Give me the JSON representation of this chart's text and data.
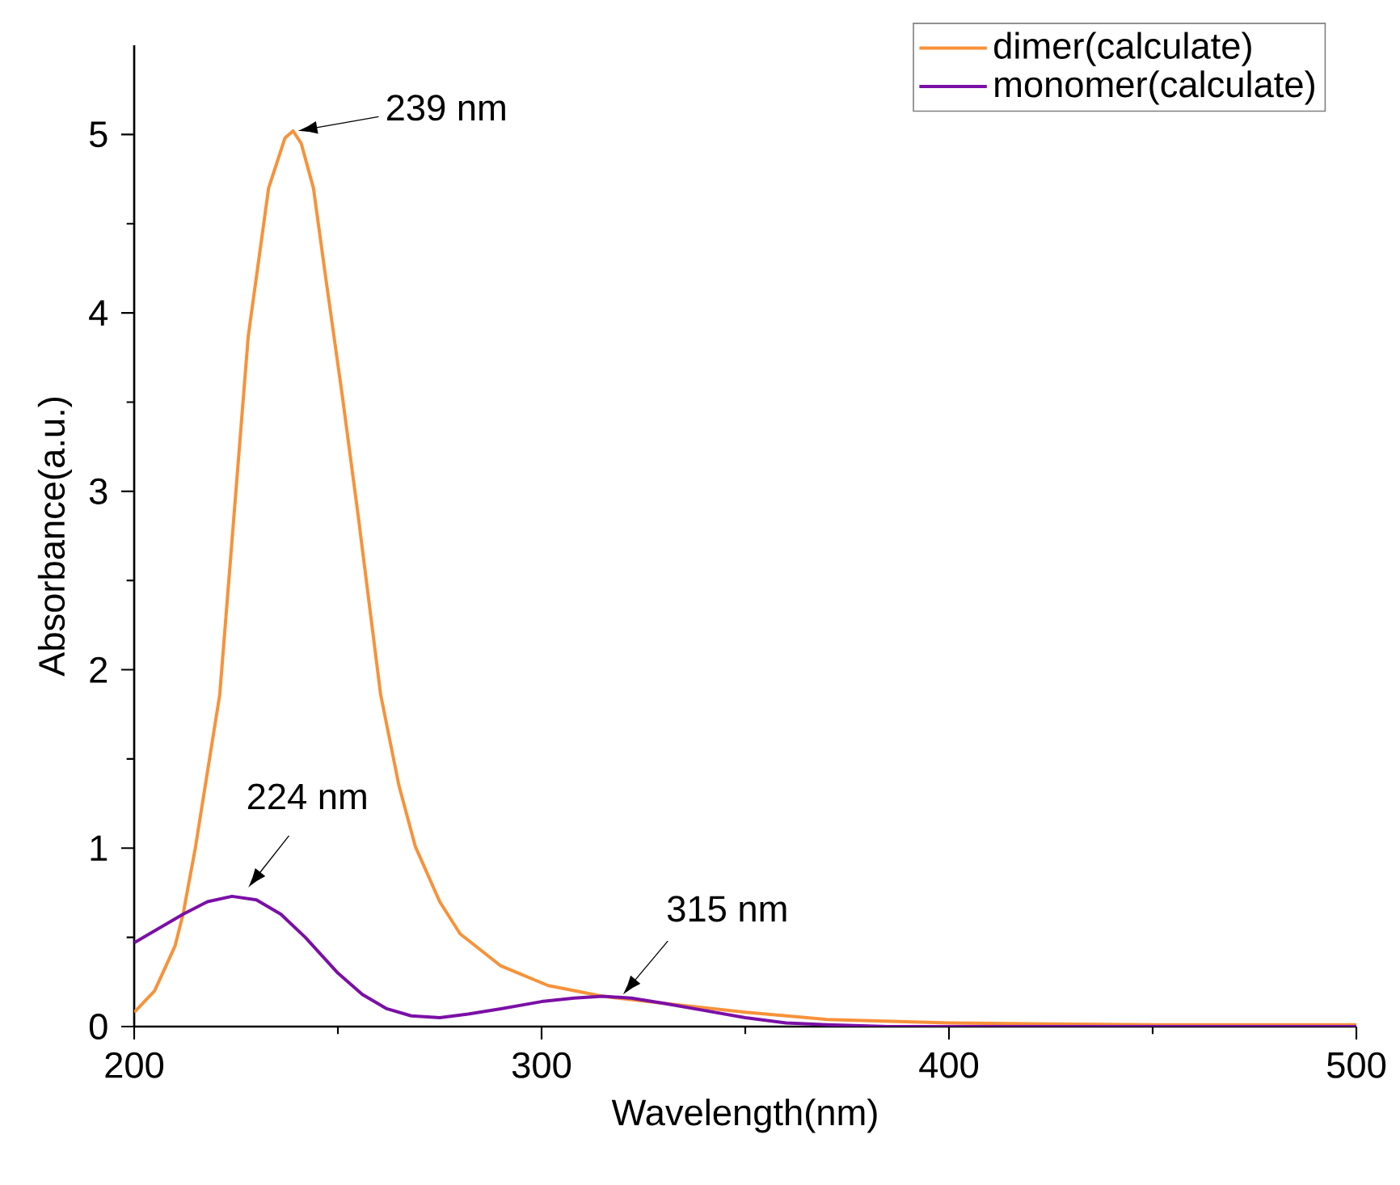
{
  "chart_data": {
    "type": "line",
    "xlabel": "Wavelength(nm)",
    "ylabel": "Absorbance(a.u.)",
    "xlim": [
      200,
      500
    ],
    "xticks": [
      200,
      300,
      400,
      500
    ],
    "ylim": [
      0,
      5.5
    ],
    "yticks": [
      0,
      1,
      2,
      3,
      4,
      5
    ],
    "grid": false,
    "legend": "top right",
    "marker": "none",
    "line_style": "solid",
    "series": [
      {
        "name": "dimer(calculate)",
        "color": "#f7923a",
        "x": [
          200,
          205,
          210,
          212,
          215,
          221,
          228,
          233,
          237,
          239,
          241,
          244,
          247,
          251,
          255,
          260.5,
          265,
          269,
          275,
          280,
          290,
          301.6,
          315,
          330,
          350,
          370,
          400,
          450,
          500
        ],
        "values": [
          0.08,
          0.2,
          0.45,
          0.63,
          1.0,
          1.86,
          3.87,
          4.7,
          4.98,
          5.02,
          4.95,
          4.7,
          4.2,
          3.55,
          2.86,
          1.86,
          1.35,
          1.01,
          0.7,
          0.52,
          0.34,
          0.23,
          0.17,
          0.13,
          0.08,
          0.04,
          0.02,
          0.01,
          0.01
        ]
      },
      {
        "name": "monomer(calculate)",
        "color": "#7b0fa6",
        "x": [
          200,
          206,
          212,
          218,
          224,
          230,
          236,
          242,
          250,
          256,
          262,
          268,
          275,
          282,
          290,
          300,
          308,
          315,
          322,
          330,
          340,
          350,
          360,
          370,
          385,
          400,
          450,
          500
        ],
        "values": [
          0.47,
          0.55,
          0.63,
          0.7,
          0.73,
          0.71,
          0.63,
          0.5,
          0.3,
          0.18,
          0.1,
          0.06,
          0.05,
          0.07,
          0.1,
          0.14,
          0.16,
          0.17,
          0.16,
          0.13,
          0.09,
          0.05,
          0.02,
          0.01,
          0.0,
          0.0,
          0.0,
          0.0
        ]
      }
    ],
    "annotations": [
      {
        "text": "239 nm",
        "x": 239,
        "y": 5.02
      },
      {
        "text": "224 nm",
        "x": 224,
        "y": 0.73
      },
      {
        "text": "315 nm",
        "x": 315,
        "y": 0.17
      }
    ]
  }
}
